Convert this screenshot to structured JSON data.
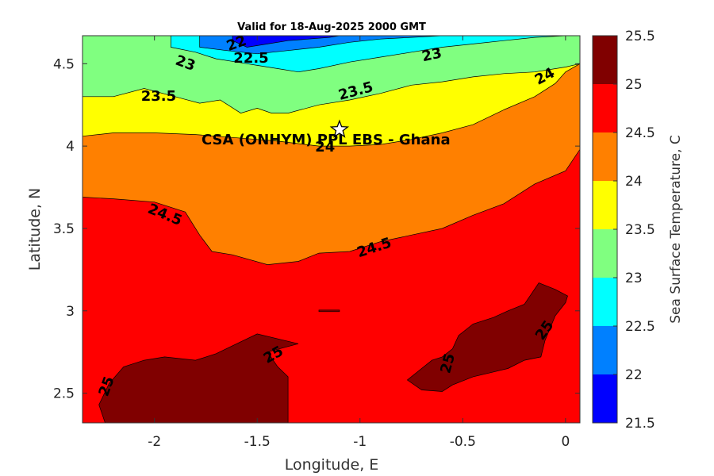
{
  "chart_data": {
    "type": "contour",
    "title": "Valid for 18-Aug-2025 2000 GMT",
    "xlabel": "Longitude, E",
    "ylabel": "Latitude, N",
    "xlim": [
      -2.35,
      0.07
    ],
    "ylim": [
      2.32,
      4.67
    ],
    "x_ticks": [
      -2,
      -1.5,
      -1,
      -0.5,
      0
    ],
    "x_tick_labels": [
      "-2",
      "-1.5",
      "-1",
      "-0.5",
      "0"
    ],
    "y_ticks": [
      2.5,
      3,
      3.5,
      4,
      4.5
    ],
    "y_tick_labels": [
      "2.5",
      "3",
      "3.5",
      "4",
      "4.5"
    ],
    "colorbar": {
      "label": "Sea Surface Temperature, C",
      "min": 21.5,
      "max": 25.5,
      "tick_labels": [
        "21.5",
        "22",
        "22.5",
        "23",
        "23.5",
        "24",
        "24.5",
        "25",
        "25.5"
      ],
      "levels": [
        {
          "from": 21.5,
          "to": 22.0,
          "color": "#0000ff"
        },
        {
          "from": 22.0,
          "to": 22.5,
          "color": "#0080ff"
        },
        {
          "from": 22.5,
          "to": 23.0,
          "color": "#00ffff"
        },
        {
          "from": 23.0,
          "to": 23.5,
          "color": "#80ff80"
        },
        {
          "from": 23.5,
          "to": 24.0,
          "color": "#ffff00"
        },
        {
          "from": 24.0,
          "to": 24.5,
          "color": "#ff8000"
        },
        {
          "from": 24.5,
          "to": 25.0,
          "color": "#ff0000"
        },
        {
          "from": 25.0,
          "to": 25.5,
          "color": "#800000"
        }
      ]
    },
    "bands": [
      {
        "level": "24.5-25",
        "color": "#ff0000",
        "points": [
          [
            -2.35,
            2.32
          ],
          [
            0.07,
            2.32
          ],
          [
            0.07,
            3.98
          ],
          [
            -2.35,
            3.98
          ]
        ]
      },
      {
        "level": "24-24.5",
        "color": "#ff8000",
        "points": [
          [
            -2.35,
            3.69
          ],
          [
            -2.2,
            3.68
          ],
          [
            -2.0,
            3.66
          ],
          [
            -1.85,
            3.6
          ],
          [
            -1.78,
            3.46
          ],
          [
            -1.72,
            3.36
          ],
          [
            -1.62,
            3.34
          ],
          [
            -1.45,
            3.28
          ],
          [
            -1.3,
            3.3
          ],
          [
            -1.2,
            3.35
          ],
          [
            -1.05,
            3.36
          ],
          [
            -0.9,
            3.42
          ],
          [
            -0.75,
            3.46
          ],
          [
            -0.6,
            3.5
          ],
          [
            -0.45,
            3.58
          ],
          [
            -0.3,
            3.65
          ],
          [
            -0.15,
            3.77
          ],
          [
            0.0,
            3.85
          ],
          [
            0.07,
            3.98
          ],
          [
            0.07,
            4.67
          ],
          [
            -2.35,
            4.67
          ]
        ]
      },
      {
        "level": "23.5-24",
        "color": "#ffff00",
        "points": [
          [
            -2.35,
            4.06
          ],
          [
            -2.2,
            4.08
          ],
          [
            -2.0,
            4.08
          ],
          [
            -1.8,
            4.07
          ],
          [
            -1.6,
            4.05
          ],
          [
            -1.4,
            4.03
          ],
          [
            -1.2,
            4.0
          ],
          [
            -1.05,
            4.0
          ],
          [
            -0.9,
            4.01
          ],
          [
            -0.75,
            4.04
          ],
          [
            -0.6,
            4.08
          ],
          [
            -0.45,
            4.13
          ],
          [
            -0.3,
            4.22
          ],
          [
            -0.15,
            4.3
          ],
          [
            -0.05,
            4.38
          ],
          [
            0.0,
            4.45
          ],
          [
            0.07,
            4.5
          ],
          [
            0.07,
            4.67
          ],
          [
            -2.35,
            4.67
          ]
        ]
      },
      {
        "level": "23-23.5",
        "color": "#80ff80",
        "points": [
          [
            -2.35,
            4.3
          ],
          [
            -2.2,
            4.3
          ],
          [
            -2.05,
            4.35
          ],
          [
            -1.9,
            4.3
          ],
          [
            -1.78,
            4.26
          ],
          [
            -1.68,
            4.28
          ],
          [
            -1.58,
            4.2
          ],
          [
            -1.5,
            4.23
          ],
          [
            -1.43,
            4.2
          ],
          [
            -1.35,
            4.2
          ],
          [
            -1.2,
            4.25
          ],
          [
            -1.05,
            4.28
          ],
          [
            -0.9,
            4.32
          ],
          [
            -0.75,
            4.37
          ],
          [
            -0.6,
            4.39
          ],
          [
            -0.45,
            4.42
          ],
          [
            -0.3,
            4.44
          ],
          [
            -0.15,
            4.45
          ],
          [
            0.0,
            4.48
          ],
          [
            0.07,
            4.5
          ],
          [
            0.07,
            4.67
          ],
          [
            -2.35,
            4.67
          ]
        ]
      },
      {
        "level": "22.5-23",
        "color": "#00ffff",
        "points": [
          [
            -1.92,
            4.6
          ],
          [
            -1.8,
            4.57
          ],
          [
            -1.7,
            4.53
          ],
          [
            -1.6,
            4.51
          ],
          [
            -1.5,
            4.49
          ],
          [
            -1.4,
            4.47
          ],
          [
            -1.3,
            4.45
          ],
          [
            -1.2,
            4.47
          ],
          [
            -1.05,
            4.51
          ],
          [
            -0.9,
            4.54
          ],
          [
            -0.75,
            4.57
          ],
          [
            -0.6,
            4.6
          ],
          [
            -0.45,
            4.62
          ],
          [
            -0.3,
            4.64
          ],
          [
            -0.15,
            4.66
          ],
          [
            0.0,
            4.67
          ],
          [
            -1.92,
            4.67
          ]
        ]
      },
      {
        "level": "22-22.5",
        "color": "#0080ff",
        "points": [
          [
            -1.78,
            4.6
          ],
          [
            -1.65,
            4.58
          ],
          [
            -1.5,
            4.56
          ],
          [
            -1.35,
            4.58
          ],
          [
            -1.2,
            4.6
          ],
          [
            -1.05,
            4.63
          ],
          [
            -0.9,
            4.65
          ],
          [
            -0.75,
            4.66
          ],
          [
            -0.6,
            4.67
          ],
          [
            -1.78,
            4.67
          ]
        ]
      },
      {
        "level": "21.5-22",
        "color": "#0000ff",
        "points": [
          [
            -1.62,
            4.64
          ],
          [
            -1.55,
            4.6
          ],
          [
            -1.45,
            4.62
          ],
          [
            -1.35,
            4.64
          ],
          [
            -1.25,
            4.65
          ],
          [
            -1.15,
            4.66
          ],
          [
            -1.1,
            4.67
          ],
          [
            -1.62,
            4.67
          ]
        ]
      },
      {
        "level": "25-25.5",
        "color": "#800000",
        "points": [
          [
            -2.24,
            2.32
          ],
          [
            -1.35,
            2.32
          ],
          [
            -1.35,
            2.6
          ],
          [
            -1.4,
            2.66
          ],
          [
            -1.45,
            2.75
          ],
          [
            -1.3,
            2.8
          ],
          [
            -1.5,
            2.86
          ],
          [
            -1.6,
            2.8
          ],
          [
            -1.7,
            2.74
          ],
          [
            -1.8,
            2.7
          ],
          [
            -1.95,
            2.72
          ],
          [
            -2.05,
            2.7
          ],
          [
            -2.15,
            2.66
          ],
          [
            -2.22,
            2.56
          ],
          [
            -2.27,
            2.43
          ]
        ]
      },
      {
        "level": "25-25.5",
        "color": "#800000",
        "points": [
          [
            -0.77,
            2.58
          ],
          [
            -0.7,
            2.52
          ],
          [
            -0.6,
            2.51
          ],
          [
            -0.55,
            2.55
          ],
          [
            -0.45,
            2.6
          ],
          [
            -0.38,
            2.62
          ],
          [
            -0.28,
            2.65
          ],
          [
            -0.2,
            2.7
          ],
          [
            -0.12,
            2.72
          ],
          [
            -0.1,
            2.82
          ],
          [
            -0.05,
            2.97
          ],
          [
            0.0,
            3.05
          ],
          [
            0.01,
            3.09
          ],
          [
            -0.05,
            3.13
          ],
          [
            -0.13,
            3.17
          ],
          [
            -0.2,
            3.04
          ],
          [
            -0.28,
            3.0
          ],
          [
            -0.35,
            2.96
          ],
          [
            -0.45,
            2.92
          ],
          [
            -0.52,
            2.85
          ],
          [
            -0.55,
            2.77
          ],
          [
            -0.6,
            2.72
          ],
          [
            -0.65,
            2.7
          ],
          [
            -0.72,
            2.63
          ]
        ]
      },
      {
        "level": "25-25.5",
        "color": "#800000",
        "points": [
          [
            -1.2,
            2.995
          ],
          [
            -1.1,
            2.995
          ],
          [
            -1.1,
            3.005
          ],
          [
            -1.2,
            3.005
          ]
        ]
      }
    ],
    "contour_labels": [
      {
        "text": "22",
        "x": -1.6,
        "y": 4.62,
        "angle": -20
      },
      {
        "text": "22.5",
        "x": -1.53,
        "y": 4.53,
        "angle": 0
      },
      {
        "text": "23",
        "x": -1.85,
        "y": 4.5,
        "angle": 20
      },
      {
        "text": "23",
        "x": -0.65,
        "y": 4.55,
        "angle": -12
      },
      {
        "text": "23.5",
        "x": -1.98,
        "y": 4.3,
        "angle": 0
      },
      {
        "text": "23.5",
        "x": -1.02,
        "y": 4.33,
        "angle": -15
      },
      {
        "text": "24",
        "x": -0.1,
        "y": 4.42,
        "angle": -28
      },
      {
        "text": "24",
        "x": -1.17,
        "y": 3.99,
        "angle": 0
      },
      {
        "text": "24.5",
        "x": -1.95,
        "y": 3.58,
        "angle": 22
      },
      {
        "text": "24.5",
        "x": -0.93,
        "y": 3.38,
        "angle": -18
      },
      {
        "text": "25",
        "x": -1.42,
        "y": 2.73,
        "angle": -30
      },
      {
        "text": "25",
        "x": -2.23,
        "y": 2.54,
        "angle": -70
      },
      {
        "text": "25",
        "x": -0.57,
        "y": 2.68,
        "angle": -75
      },
      {
        "text": "25",
        "x": -0.1,
        "y": 2.88,
        "angle": -55
      }
    ],
    "site": {
      "label": "CSA (ONHYM) PPL EBS  - Ghana",
      "x": -1.1,
      "y": 4.1
    },
    "grid": false
  }
}
